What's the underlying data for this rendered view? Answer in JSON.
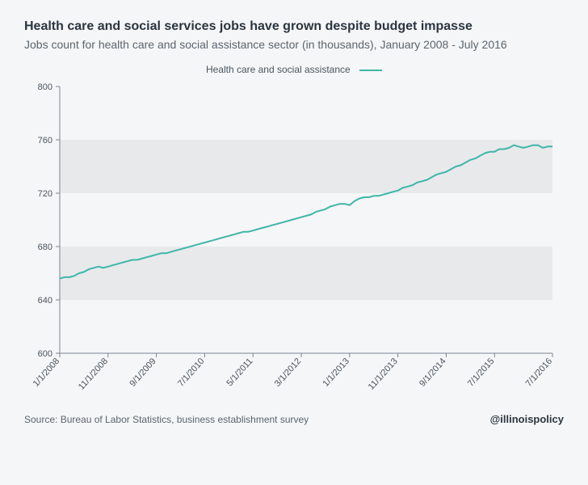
{
  "title": "Health care and social services jobs have grown despite budget impasse",
  "subtitle": "Jobs count for health care and social assistance sector (in thousands), January 2008 - July 2016",
  "legend": {
    "label": "Health care and social assistance"
  },
  "source": "Source: Bureau of Labor Statistics, business establishment survey",
  "handle": "@illinoispolicy",
  "chart": {
    "type": "line",
    "background_color": "#f5f6f7",
    "band_color": "#e7e9eb",
    "axis_color": "#7a8590",
    "tick_text_color": "#4a5560",
    "line_color": "#3fb6a8",
    "line_width": 2,
    "ylim": [
      600,
      800
    ],
    "ytick_step": 40,
    "yticks": [
      600,
      640,
      680,
      720,
      760,
      800
    ],
    "x_labels": [
      "1/1/2008",
      "11/1/2008",
      "9/1/2009",
      "7/1/2010",
      "5/1/2011",
      "3/1/2012",
      "1/1/2013",
      "11/1/2013",
      "9/1/2014",
      "7/1/2015",
      "7/1/2016"
    ],
    "x_label_positions_months": [
      0,
      10,
      20,
      30,
      40,
      50,
      60,
      70,
      80,
      90,
      102
    ],
    "n_months": 103,
    "series": [
      656,
      657,
      657,
      658,
      660,
      661,
      663,
      664,
      665,
      664,
      665,
      666,
      667,
      668,
      669,
      670,
      670,
      671,
      672,
      673,
      674,
      675,
      675,
      676,
      677,
      678,
      679,
      680,
      681,
      682,
      683,
      684,
      685,
      686,
      687,
      688,
      689,
      690,
      691,
      691,
      692,
      693,
      694,
      695,
      696,
      697,
      698,
      699,
      700,
      701,
      702,
      703,
      704,
      706,
      707,
      708,
      710,
      711,
      712,
      712,
      711,
      714,
      716,
      717,
      717,
      718,
      718,
      719,
      720,
      721,
      722,
      724,
      725,
      726,
      728,
      729,
      730,
      732,
      734,
      735,
      736,
      738,
      740,
      741,
      743,
      745,
      746,
      748,
      750,
      751,
      751,
      753,
      753,
      754,
      756,
      755,
      754,
      755,
      756,
      756,
      754,
      755,
      755
    ],
    "tick_fontsize": 11
  }
}
